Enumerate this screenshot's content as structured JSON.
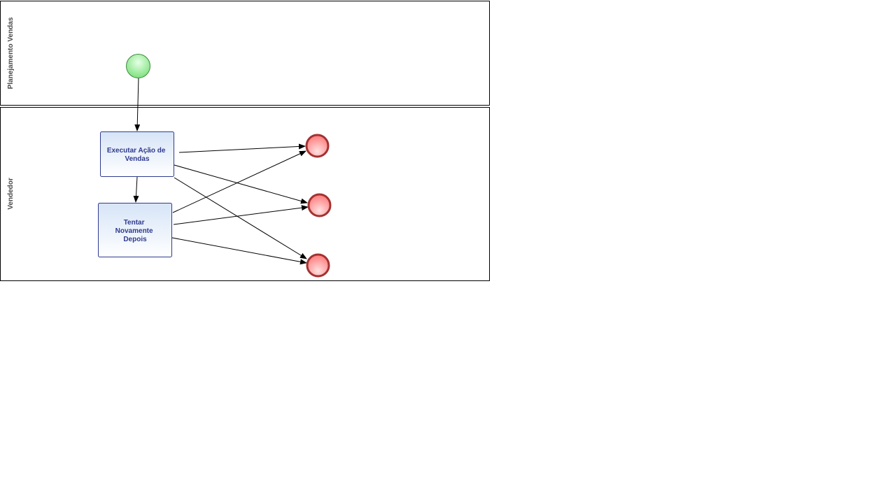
{
  "diagram": {
    "type": "bpmn-process",
    "lanes": [
      {
        "id": "lane_planejamento",
        "label": "Planejamento Vendas"
      },
      {
        "id": "lane_vendedor",
        "label": "Vendedor"
      }
    ],
    "start_event": {
      "id": "start",
      "lane": "lane_planejamento"
    },
    "tasks": [
      {
        "id": "task_executar",
        "lane": "lane_vendedor",
        "lines": [
          "Executar Ação de",
          "Vendas"
        ]
      },
      {
        "id": "task_tentar",
        "lane": "lane_vendedor",
        "lines": [
          "Tentar",
          "Novamente",
          "Depois"
        ]
      }
    ],
    "end_events": [
      {
        "id": "end_1",
        "lane": "lane_vendedor"
      },
      {
        "id": "end_2",
        "lane": "lane_vendedor"
      },
      {
        "id": "end_3",
        "lane": "lane_vendedor"
      }
    ],
    "flows": [
      {
        "from": "start",
        "to": "task_executar"
      },
      {
        "from": "task_executar",
        "to": "task_tentar"
      },
      {
        "from": "task_executar",
        "to": "end_1"
      },
      {
        "from": "task_executar",
        "to": "end_2"
      },
      {
        "from": "task_executar",
        "to": "end_3"
      },
      {
        "from": "task_tentar",
        "to": "end_1"
      },
      {
        "from": "task_tentar",
        "to": "end_2"
      },
      {
        "from": "task_tentar",
        "to": "end_3"
      }
    ],
    "colors": {
      "start_fill": "#7ee27e",
      "start_stroke": "#3d8a3d",
      "end_fill": "#ff7f7f",
      "end_stroke": "#a33232",
      "task_fill_top": "#d6e4f7",
      "task_fill_bottom": "#ffffff",
      "task_stroke": "#2f3a8f",
      "task_text": "#2f3a8f",
      "lane_stroke": "#000000",
      "flow_stroke": "#000000"
    }
  }
}
